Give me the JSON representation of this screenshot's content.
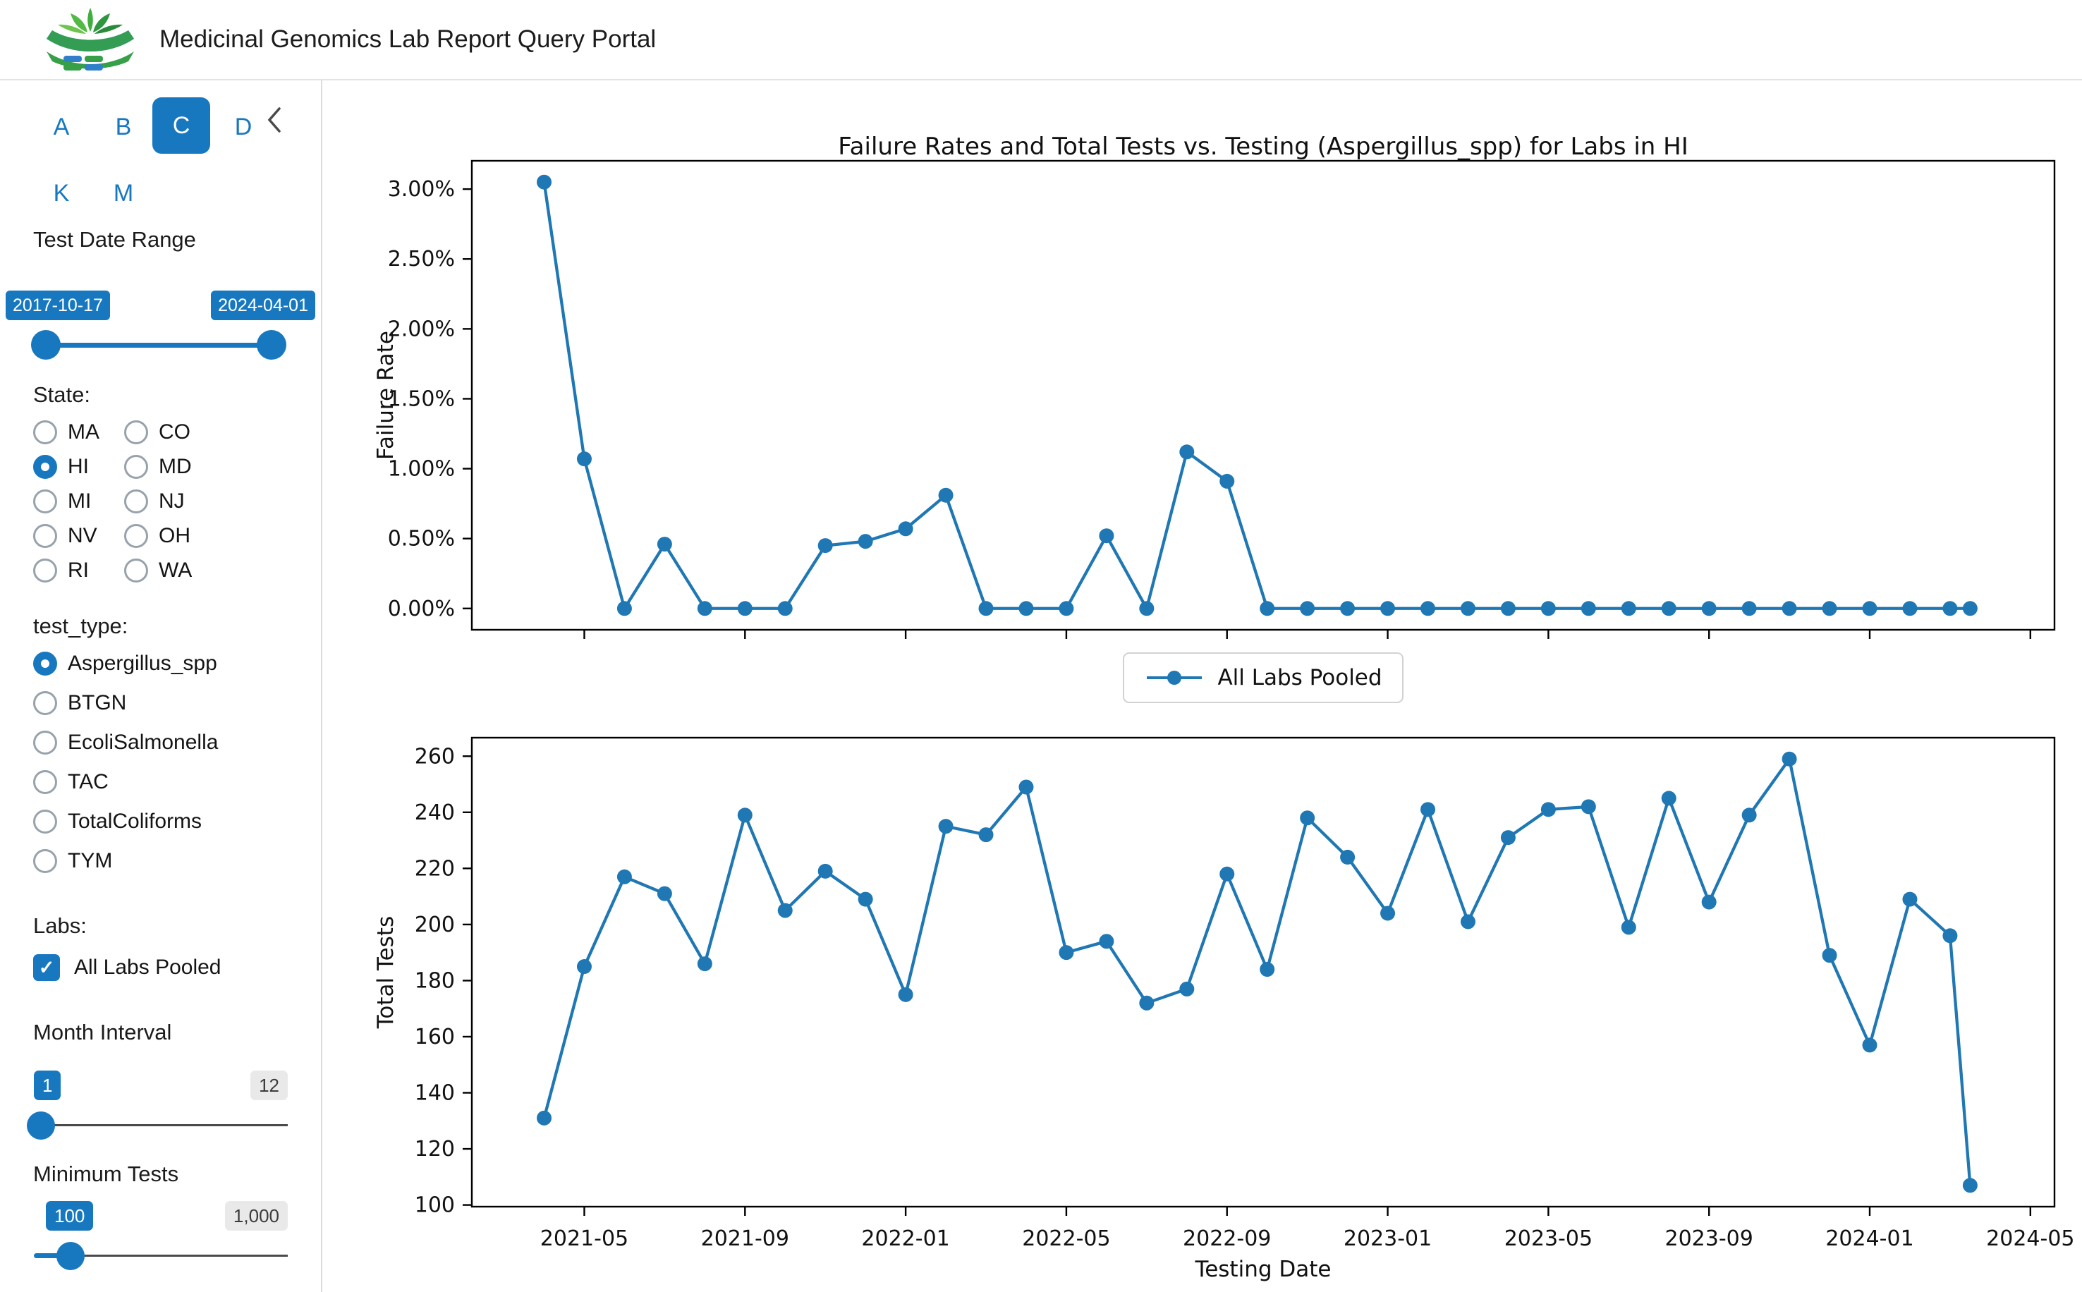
{
  "header": {
    "title": "Medicinal Genomics Lab Report Query Portal",
    "logo_icon": "dna-leaf-logo"
  },
  "colors": {
    "accent": "#1878bf",
    "chart_line": "#1f77b4",
    "badge_gray_bg": "#e9e9e9",
    "spine": "#000000"
  },
  "sidebar": {
    "letters": [
      {
        "label": "A",
        "selected": false
      },
      {
        "label": "B",
        "selected": false
      },
      {
        "label": "C",
        "selected": true
      },
      {
        "label": "D",
        "selected": false
      },
      {
        "label": "K",
        "selected": false
      },
      {
        "label": "M",
        "selected": false
      }
    ],
    "collapse_icon": "chevron-left",
    "date_range": {
      "label": "Test Date Range",
      "start": "2017-10-17",
      "end": "2024-04-01"
    },
    "state": {
      "label": "State:",
      "options": [
        {
          "label": "MA",
          "selected": false
        },
        {
          "label": "CO",
          "selected": false
        },
        {
          "label": "HI",
          "selected": true
        },
        {
          "label": "MD",
          "selected": false
        },
        {
          "label": "MI",
          "selected": false
        },
        {
          "label": "NJ",
          "selected": false
        },
        {
          "label": "NV",
          "selected": false
        },
        {
          "label": "OH",
          "selected": false
        },
        {
          "label": "RI",
          "selected": false
        },
        {
          "label": "WA",
          "selected": false
        }
      ]
    },
    "test_type": {
      "label": "test_type:",
      "options": [
        {
          "label": "Aspergillus_spp",
          "selected": true
        },
        {
          "label": "BTGN",
          "selected": false
        },
        {
          "label": "EcoliSalmonella",
          "selected": false
        },
        {
          "label": "TAC",
          "selected": false
        },
        {
          "label": "TotalColiforms",
          "selected": false
        },
        {
          "label": "TYM",
          "selected": false
        }
      ]
    },
    "labs": {
      "label": "Labs:",
      "option": {
        "label": "All Labs Pooled",
        "checked": true
      }
    },
    "month_interval": {
      "label": "Month Interval",
      "current": "1",
      "max": "12"
    },
    "minimum_tests": {
      "label": "Minimum Tests",
      "current": "100",
      "max": "1,000"
    }
  },
  "chart_data": [
    {
      "type": "line",
      "title": "Failure Rates and Total Tests vs. Testing (Aspergillus_spp) for Labs in HI",
      "ylabel": "Failure Rate",
      "legend_position": "below",
      "grid": false,
      "x": [
        "2021-04",
        "2021-05",
        "2021-06",
        "2021-07",
        "2021-08",
        "2021-09",
        "2021-10",
        "2021-11",
        "2021-12",
        "2022-01",
        "2022-02",
        "2022-03",
        "2022-04",
        "2022-05",
        "2022-06",
        "2022-07",
        "2022-08",
        "2022-09",
        "2022-10",
        "2022-11",
        "2022-12",
        "2023-01",
        "2023-02",
        "2023-03",
        "2023-04",
        "2023-05",
        "2023-06",
        "2023-07",
        "2023-08",
        "2023-09",
        "2023-10",
        "2023-11",
        "2023-12",
        "2024-01",
        "2024-02",
        "2024-03",
        "2024-04"
      ],
      "x_pos": [
        0,
        1,
        2,
        3,
        4,
        5,
        6,
        7,
        8,
        9,
        10,
        11,
        12,
        13,
        14,
        15,
        16,
        17,
        18,
        19,
        20,
        21,
        22,
        23,
        24,
        25,
        26,
        27,
        28,
        29,
        30,
        31,
        32,
        33,
        34,
        35,
        35.5
      ],
      "series": [
        {
          "name": "All Labs Pooled",
          "values": [
            3.05,
            1.07,
            0.0,
            0.46,
            0.0,
            0.0,
            0.0,
            0.45,
            0.48,
            0.57,
            0.81,
            0.0,
            0.0,
            0.0,
            0.52,
            0.0,
            1.12,
            0.91,
            0.0,
            0.0,
            0.0,
            0.0,
            0.0,
            0.0,
            0.0,
            0.0,
            0.0,
            0.0,
            0.0,
            0.0,
            0.0,
            0.0,
            0.0,
            0.0,
            0.0,
            0.0,
            0.0
          ]
        }
      ],
      "xlim": [
        -1.8,
        37.6
      ],
      "ylim": [
        -0.1525,
        3.2025
      ],
      "yticks": [
        {
          "v": 0.0,
          "label": "0.00%"
        },
        {
          "v": 0.5,
          "label": "0.50%"
        },
        {
          "v": 1.0,
          "label": "1.00%"
        },
        {
          "v": 1.5,
          "label": "1.50%"
        },
        {
          "v": 2.0,
          "label": "2.00%"
        },
        {
          "v": 2.5,
          "label": "2.50%"
        },
        {
          "v": 3.0,
          "label": "3.00%"
        }
      ],
      "xticks": [
        {
          "v": 1,
          "label": "2021-05"
        },
        {
          "v": 5,
          "label": "2021-09"
        },
        {
          "v": 9,
          "label": "2022-01"
        },
        {
          "v": 13,
          "label": "2022-05"
        },
        {
          "v": 17,
          "label": "2022-09"
        },
        {
          "v": 21,
          "label": "2023-01"
        },
        {
          "v": 25,
          "label": "2023-05"
        },
        {
          "v": 29,
          "label": "2023-09"
        },
        {
          "v": 33,
          "label": "2024-01"
        },
        {
          "v": 37,
          "label": "2024-05"
        }
      ],
      "show_xtick_labels": false
    },
    {
      "type": "line",
      "xlabel": "Testing Date",
      "ylabel": "Total Tests",
      "grid": false,
      "x": [
        "2021-04",
        "2021-05",
        "2021-06",
        "2021-07",
        "2021-08",
        "2021-09",
        "2021-10",
        "2021-11",
        "2021-12",
        "2022-01",
        "2022-02",
        "2022-03",
        "2022-04",
        "2022-05",
        "2022-06",
        "2022-07",
        "2022-08",
        "2022-09",
        "2022-10",
        "2022-11",
        "2022-12",
        "2023-01",
        "2023-02",
        "2023-03",
        "2023-04",
        "2023-05",
        "2023-06",
        "2023-07",
        "2023-08",
        "2023-09",
        "2023-10",
        "2023-11",
        "2023-12",
        "2024-01",
        "2024-02",
        "2024-03",
        "2024-04"
      ],
      "x_pos": [
        0,
        1,
        2,
        3,
        4,
        5,
        6,
        7,
        8,
        9,
        10,
        11,
        12,
        13,
        14,
        15,
        16,
        17,
        18,
        19,
        20,
        21,
        22,
        23,
        24,
        25,
        26,
        27,
        28,
        29,
        30,
        31,
        32,
        33,
        34,
        35,
        35.5
      ],
      "series": [
        {
          "name": "All Labs Pooled",
          "values": [
            131,
            185,
            217,
            211,
            186,
            239,
            205,
            219,
            209,
            175,
            235,
            232,
            249,
            190,
            194,
            172,
            177,
            218,
            184,
            238,
            224,
            204,
            241,
            201,
            231,
            241,
            242,
            199,
            245,
            208,
            239,
            259,
            189,
            157,
            209,
            196,
            107
          ]
        }
      ],
      "xlim": [
        -1.8,
        37.6
      ],
      "ylim": [
        99.4,
        266.6
      ],
      "yticks": [
        {
          "v": 100,
          "label": "100"
        },
        {
          "v": 120,
          "label": "120"
        },
        {
          "v": 140,
          "label": "140"
        },
        {
          "v": 160,
          "label": "160"
        },
        {
          "v": 180,
          "label": "180"
        },
        {
          "v": 200,
          "label": "200"
        },
        {
          "v": 220,
          "label": "220"
        },
        {
          "v": 240,
          "label": "240"
        },
        {
          "v": 260,
          "label": "260"
        }
      ],
      "xticks": [
        {
          "v": 1,
          "label": "2021-05"
        },
        {
          "v": 5,
          "label": "2021-09"
        },
        {
          "v": 9,
          "label": "2022-01"
        },
        {
          "v": 13,
          "label": "2022-05"
        },
        {
          "v": 17,
          "label": "2022-09"
        },
        {
          "v": 21,
          "label": "2023-01"
        },
        {
          "v": 25,
          "label": "2023-05"
        },
        {
          "v": 29,
          "label": "2023-09"
        },
        {
          "v": 33,
          "label": "2024-01"
        },
        {
          "v": 37,
          "label": "2024-05"
        }
      ],
      "show_xtick_labels": true
    }
  ]
}
